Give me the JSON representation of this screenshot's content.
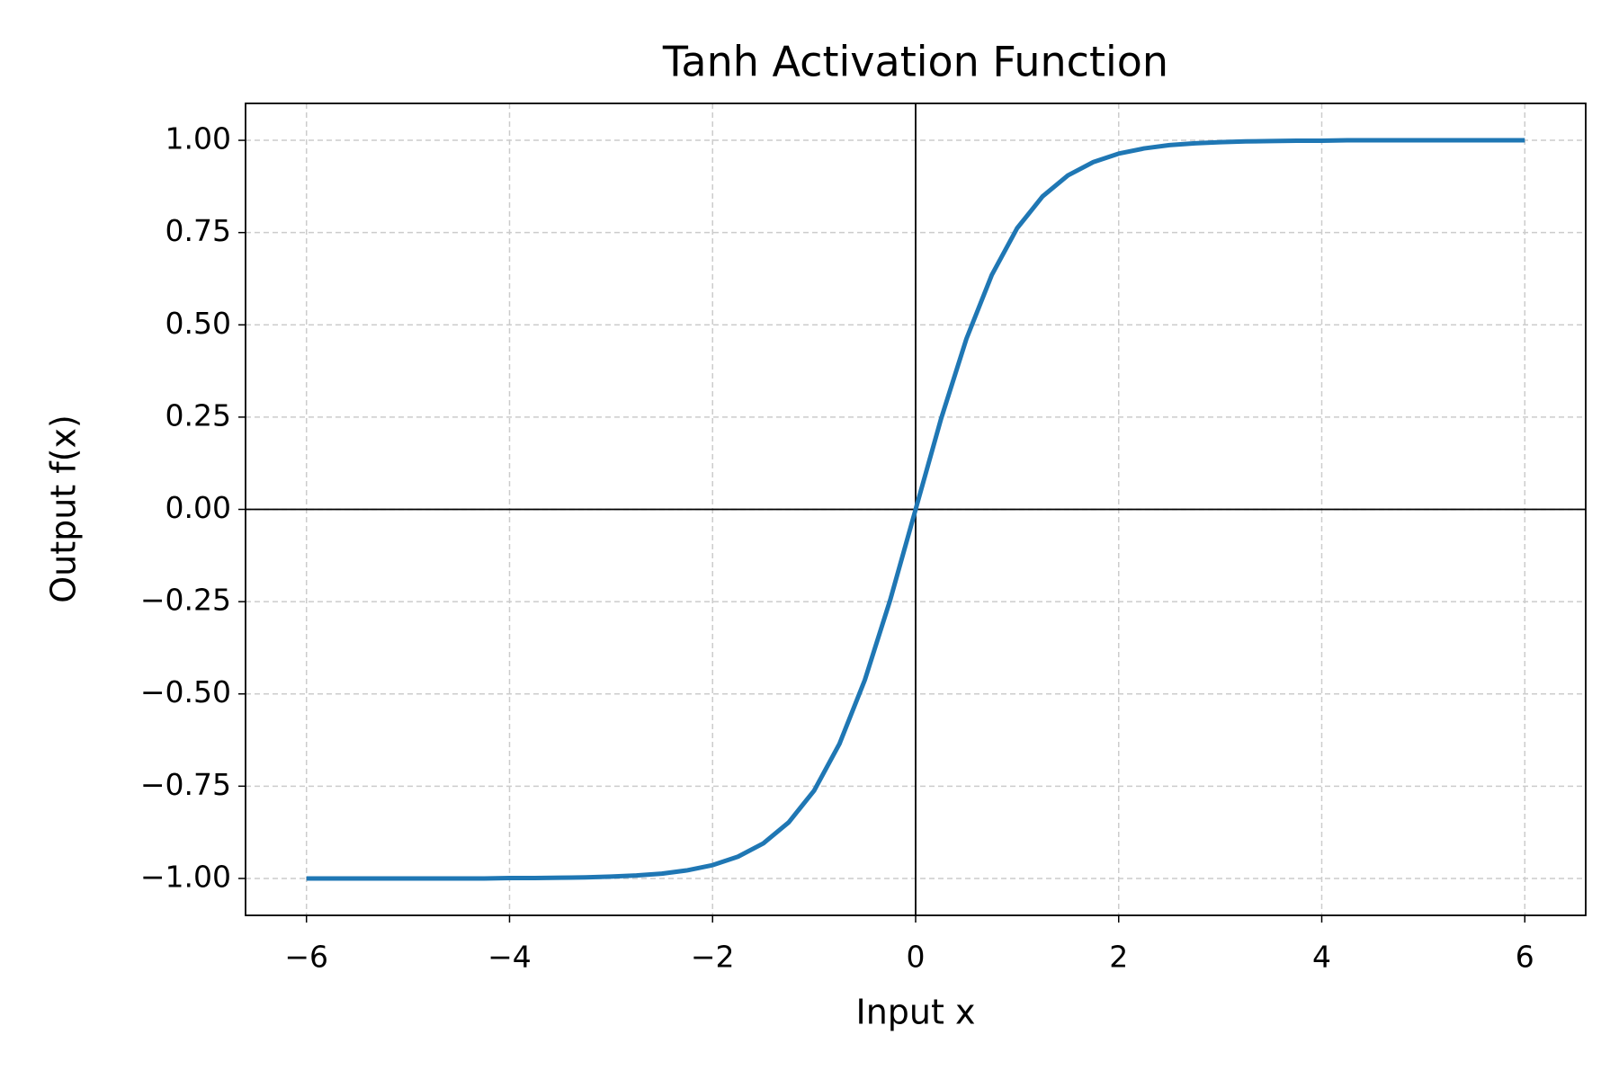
{
  "chart_data": {
    "type": "line",
    "title": "Tanh Activation Function",
    "x_label": "Input x",
    "y_label": "Output f(x)",
    "x": [
      -6,
      -5.75,
      -5.5,
      -5.25,
      -5,
      -4.75,
      -4.5,
      -4.25,
      -4,
      -3.75,
      -3.5,
      -3.25,
      -3,
      -2.75,
      -2.5,
      -2.25,
      -2,
      -1.75,
      -1.5,
      -1.25,
      -1,
      -0.75,
      -0.5,
      -0.25,
      0,
      0.25,
      0.5,
      0.75,
      1,
      1.25,
      1.5,
      1.75,
      2,
      2.25,
      2.5,
      2.75,
      3,
      3.25,
      3.5,
      3.75,
      4,
      4.25,
      4.5,
      4.75,
      5,
      5.25,
      5.5,
      5.75,
      6
    ],
    "values": [
      -1.0,
      -1.0,
      -1.0,
      -1.0,
      -1.0,
      -1.0,
      -1.0,
      -1.0,
      -0.999,
      -0.999,
      -0.998,
      -0.997,
      -0.995,
      -0.992,
      -0.987,
      -0.978,
      -0.964,
      -0.941,
      -0.905,
      -0.848,
      -0.762,
      -0.635,
      -0.462,
      -0.245,
      0,
      0.245,
      0.462,
      0.635,
      0.762,
      0.848,
      0.905,
      0.941,
      0.964,
      0.978,
      0.987,
      0.992,
      0.995,
      0.997,
      0.998,
      0.999,
      0.999,
      1.0,
      1.0,
      1.0,
      1.0,
      1.0,
      1.0,
      1.0,
      1.0
    ],
    "color": "#1f77b4",
    "xlim": [
      -6.6,
      6.6
    ],
    "ylim": [
      -1.1,
      1.1
    ],
    "xticks": [
      {
        "value": -6,
        "label": "−6"
      },
      {
        "value": -4,
        "label": "−4"
      },
      {
        "value": -2,
        "label": "−2"
      },
      0,
      2,
      4,
      6
    ],
    "yticks": [
      {
        "value": -1,
        "label": "−1.00"
      },
      {
        "value": -0.75,
        "label": "−0.75"
      },
      {
        "value": -0.5,
        "label": "−0.50"
      },
      {
        "value": -0.25,
        "label": "−0.25"
      },
      {
        "value": 0,
        "label": "0.00"
      },
      {
        "value": 0.25,
        "label": "0.25"
      },
      {
        "value": 0.5,
        "label": "0.50"
      },
      {
        "value": 0.75,
        "label": "0.75"
      },
      {
        "value": 1,
        "label": "1.00"
      }
    ],
    "hlines": [
      0
    ],
    "vlines": [
      0
    ],
    "grid": true
  }
}
